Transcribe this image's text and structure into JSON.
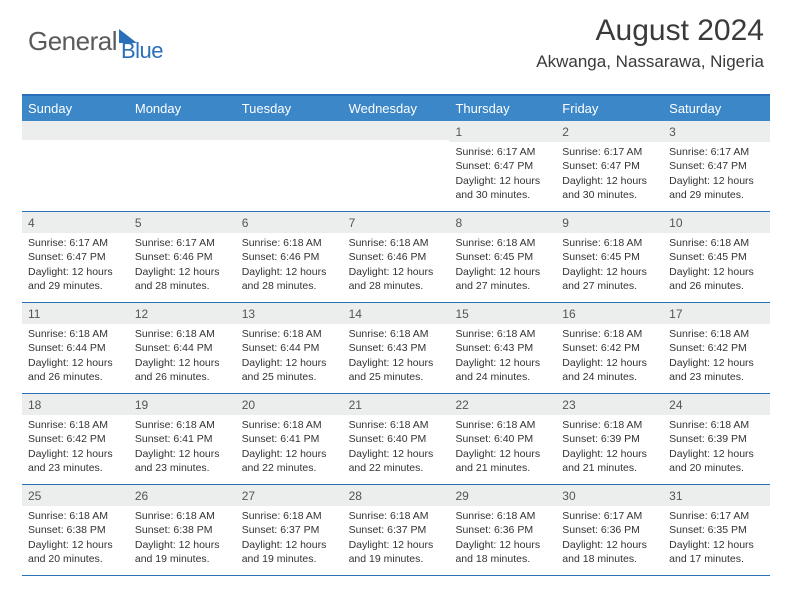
{
  "logo": {
    "text1": "General",
    "text2": "Blue"
  },
  "title": "August 2024",
  "location": "Akwanga, Nassarawa, Nigeria",
  "colors": {
    "accent": "#2a70b8",
    "header_bg": "#3b87c8",
    "band_bg": "#eceded",
    "text": "#333333"
  },
  "day_labels": [
    "Sunday",
    "Monday",
    "Tuesday",
    "Wednesday",
    "Thursday",
    "Friday",
    "Saturday"
  ],
  "weeks": [
    [
      {
        "n": "",
        "sr": "",
        "ss": "",
        "dl1": "",
        "dl2": ""
      },
      {
        "n": "",
        "sr": "",
        "ss": "",
        "dl1": "",
        "dl2": ""
      },
      {
        "n": "",
        "sr": "",
        "ss": "",
        "dl1": "",
        "dl2": ""
      },
      {
        "n": "",
        "sr": "",
        "ss": "",
        "dl1": "",
        "dl2": ""
      },
      {
        "n": "1",
        "sr": "Sunrise: 6:17 AM",
        "ss": "Sunset: 6:47 PM",
        "dl1": "Daylight: 12 hours",
        "dl2": "and 30 minutes."
      },
      {
        "n": "2",
        "sr": "Sunrise: 6:17 AM",
        "ss": "Sunset: 6:47 PM",
        "dl1": "Daylight: 12 hours",
        "dl2": "and 30 minutes."
      },
      {
        "n": "3",
        "sr": "Sunrise: 6:17 AM",
        "ss": "Sunset: 6:47 PM",
        "dl1": "Daylight: 12 hours",
        "dl2": "and 29 minutes."
      }
    ],
    [
      {
        "n": "4",
        "sr": "Sunrise: 6:17 AM",
        "ss": "Sunset: 6:47 PM",
        "dl1": "Daylight: 12 hours",
        "dl2": "and 29 minutes."
      },
      {
        "n": "5",
        "sr": "Sunrise: 6:17 AM",
        "ss": "Sunset: 6:46 PM",
        "dl1": "Daylight: 12 hours",
        "dl2": "and 28 minutes."
      },
      {
        "n": "6",
        "sr": "Sunrise: 6:18 AM",
        "ss": "Sunset: 6:46 PM",
        "dl1": "Daylight: 12 hours",
        "dl2": "and 28 minutes."
      },
      {
        "n": "7",
        "sr": "Sunrise: 6:18 AM",
        "ss": "Sunset: 6:46 PM",
        "dl1": "Daylight: 12 hours",
        "dl2": "and 28 minutes."
      },
      {
        "n": "8",
        "sr": "Sunrise: 6:18 AM",
        "ss": "Sunset: 6:45 PM",
        "dl1": "Daylight: 12 hours",
        "dl2": "and 27 minutes."
      },
      {
        "n": "9",
        "sr": "Sunrise: 6:18 AM",
        "ss": "Sunset: 6:45 PM",
        "dl1": "Daylight: 12 hours",
        "dl2": "and 27 minutes."
      },
      {
        "n": "10",
        "sr": "Sunrise: 6:18 AM",
        "ss": "Sunset: 6:45 PM",
        "dl1": "Daylight: 12 hours",
        "dl2": "and 26 minutes."
      }
    ],
    [
      {
        "n": "11",
        "sr": "Sunrise: 6:18 AM",
        "ss": "Sunset: 6:44 PM",
        "dl1": "Daylight: 12 hours",
        "dl2": "and 26 minutes."
      },
      {
        "n": "12",
        "sr": "Sunrise: 6:18 AM",
        "ss": "Sunset: 6:44 PM",
        "dl1": "Daylight: 12 hours",
        "dl2": "and 26 minutes."
      },
      {
        "n": "13",
        "sr": "Sunrise: 6:18 AM",
        "ss": "Sunset: 6:44 PM",
        "dl1": "Daylight: 12 hours",
        "dl2": "and 25 minutes."
      },
      {
        "n": "14",
        "sr": "Sunrise: 6:18 AM",
        "ss": "Sunset: 6:43 PM",
        "dl1": "Daylight: 12 hours",
        "dl2": "and 25 minutes."
      },
      {
        "n": "15",
        "sr": "Sunrise: 6:18 AM",
        "ss": "Sunset: 6:43 PM",
        "dl1": "Daylight: 12 hours",
        "dl2": "and 24 minutes."
      },
      {
        "n": "16",
        "sr": "Sunrise: 6:18 AM",
        "ss": "Sunset: 6:42 PM",
        "dl1": "Daylight: 12 hours",
        "dl2": "and 24 minutes."
      },
      {
        "n": "17",
        "sr": "Sunrise: 6:18 AM",
        "ss": "Sunset: 6:42 PM",
        "dl1": "Daylight: 12 hours",
        "dl2": "and 23 minutes."
      }
    ],
    [
      {
        "n": "18",
        "sr": "Sunrise: 6:18 AM",
        "ss": "Sunset: 6:42 PM",
        "dl1": "Daylight: 12 hours",
        "dl2": "and 23 minutes."
      },
      {
        "n": "19",
        "sr": "Sunrise: 6:18 AM",
        "ss": "Sunset: 6:41 PM",
        "dl1": "Daylight: 12 hours",
        "dl2": "and 23 minutes."
      },
      {
        "n": "20",
        "sr": "Sunrise: 6:18 AM",
        "ss": "Sunset: 6:41 PM",
        "dl1": "Daylight: 12 hours",
        "dl2": "and 22 minutes."
      },
      {
        "n": "21",
        "sr": "Sunrise: 6:18 AM",
        "ss": "Sunset: 6:40 PM",
        "dl1": "Daylight: 12 hours",
        "dl2": "and 22 minutes."
      },
      {
        "n": "22",
        "sr": "Sunrise: 6:18 AM",
        "ss": "Sunset: 6:40 PM",
        "dl1": "Daylight: 12 hours",
        "dl2": "and 21 minutes."
      },
      {
        "n": "23",
        "sr": "Sunrise: 6:18 AM",
        "ss": "Sunset: 6:39 PM",
        "dl1": "Daylight: 12 hours",
        "dl2": "and 21 minutes."
      },
      {
        "n": "24",
        "sr": "Sunrise: 6:18 AM",
        "ss": "Sunset: 6:39 PM",
        "dl1": "Daylight: 12 hours",
        "dl2": "and 20 minutes."
      }
    ],
    [
      {
        "n": "25",
        "sr": "Sunrise: 6:18 AM",
        "ss": "Sunset: 6:38 PM",
        "dl1": "Daylight: 12 hours",
        "dl2": "and 20 minutes."
      },
      {
        "n": "26",
        "sr": "Sunrise: 6:18 AM",
        "ss": "Sunset: 6:38 PM",
        "dl1": "Daylight: 12 hours",
        "dl2": "and 19 minutes."
      },
      {
        "n": "27",
        "sr": "Sunrise: 6:18 AM",
        "ss": "Sunset: 6:37 PM",
        "dl1": "Daylight: 12 hours",
        "dl2": "and 19 minutes."
      },
      {
        "n": "28",
        "sr": "Sunrise: 6:18 AM",
        "ss": "Sunset: 6:37 PM",
        "dl1": "Daylight: 12 hours",
        "dl2": "and 19 minutes."
      },
      {
        "n": "29",
        "sr": "Sunrise: 6:18 AM",
        "ss": "Sunset: 6:36 PM",
        "dl1": "Daylight: 12 hours",
        "dl2": "and 18 minutes."
      },
      {
        "n": "30",
        "sr": "Sunrise: 6:17 AM",
        "ss": "Sunset: 6:36 PM",
        "dl1": "Daylight: 12 hours",
        "dl2": "and 18 minutes."
      },
      {
        "n": "31",
        "sr": "Sunrise: 6:17 AM",
        "ss": "Sunset: 6:35 PM",
        "dl1": "Daylight: 12 hours",
        "dl2": "and 17 minutes."
      }
    ]
  ]
}
